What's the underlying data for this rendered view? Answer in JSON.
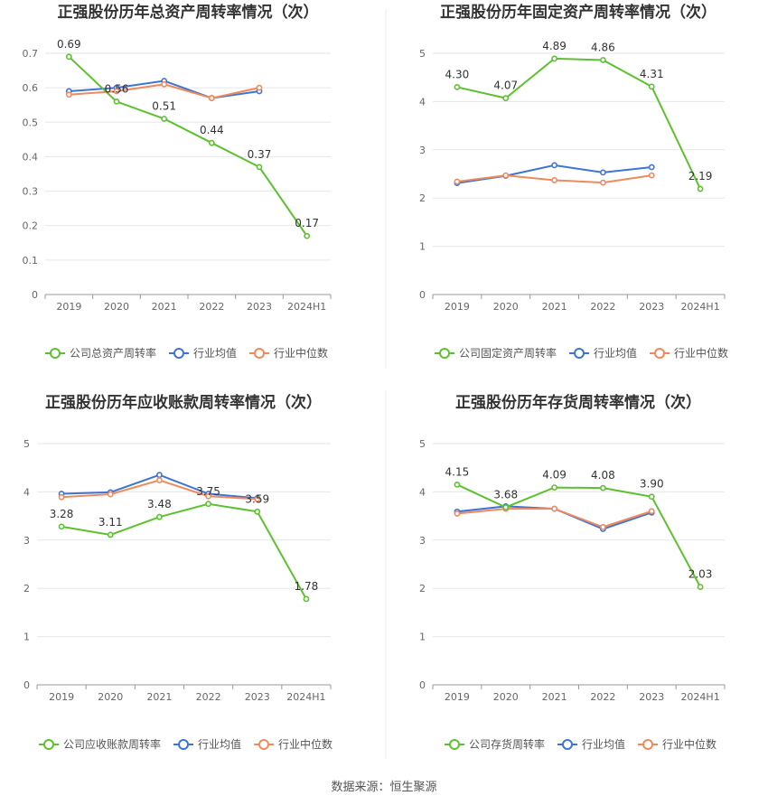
{
  "source": "数据来源：恒生聚源",
  "legend_common": {
    "avg": "行业均值",
    "median": "行业中位数"
  },
  "colors": {
    "company": "#5dc12f",
    "avg": "#3d74d6",
    "median": "#f08a5d",
    "grid": "#e6e6ee",
    "axis": "#999999"
  },
  "chart_data": [
    {
      "type": "line",
      "title": "正强股份历年总资产周转率情况（次）",
      "categories": [
        "2019",
        "2020",
        "2021",
        "2022",
        "2023",
        "2024H1"
      ],
      "ylim": [
        0,
        0.7
      ],
      "yticks": [
        "0",
        "0.1",
        "0.2",
        "0.3",
        "0.4",
        "0.5",
        "0.6",
        "0.7"
      ],
      "series": [
        {
          "name": "公司总资产周转率",
          "values": [
            0.69,
            0.56,
            0.51,
            0.44,
            0.37,
            0.17
          ],
          "labels": [
            "0.69",
            "0.56",
            "0.51",
            "0.44",
            "0.37",
            "0.17"
          ]
        },
        {
          "name": "行业均值",
          "values": [
            0.59,
            0.6,
            0.62,
            0.57,
            0.59,
            null
          ]
        },
        {
          "name": "行业中位数",
          "values": [
            0.58,
            0.59,
            0.61,
            0.57,
            0.6,
            null
          ]
        }
      ]
    },
    {
      "type": "line",
      "title": "正强股份历年固定资产周转率情况（次）",
      "categories": [
        "2019",
        "2020",
        "2021",
        "2022",
        "2023",
        "2024H1"
      ],
      "ylim": [
        0,
        5
      ],
      "yticks": [
        "0",
        "1",
        "2",
        "3",
        "4",
        "5"
      ],
      "series": [
        {
          "name": "公司固定资产周转率",
          "values": [
            4.3,
            4.07,
            4.89,
            4.86,
            4.31,
            2.19
          ],
          "labels": [
            "4.30",
            "4.07",
            "4.89",
            "4.86",
            "4.31",
            "2.19"
          ]
        },
        {
          "name": "行业均值",
          "values": [
            2.31,
            2.46,
            2.68,
            2.53,
            2.64,
            null
          ]
        },
        {
          "name": "行业中位数",
          "values": [
            2.34,
            2.47,
            2.37,
            2.32,
            2.47,
            null
          ]
        }
      ]
    },
    {
      "type": "line",
      "title": "正强股份历年应收账款周转率情况（次）",
      "categories": [
        "2019",
        "2020",
        "2021",
        "2022",
        "2023",
        "2024H1"
      ],
      "ylim": [
        0,
        5
      ],
      "yticks": [
        "0",
        "1",
        "2",
        "3",
        "4",
        "5"
      ],
      "series": [
        {
          "name": "公司应收账款周转率",
          "values": [
            3.28,
            3.11,
            3.48,
            3.75,
            3.59,
            1.78
          ],
          "labels": [
            "3.28",
            "3.11",
            "3.48",
            "3.75",
            "3.59",
            "1.78"
          ]
        },
        {
          "name": "行业均值",
          "values": [
            3.96,
            3.99,
            4.35,
            3.96,
            3.87,
            null
          ]
        },
        {
          "name": "行业中位数",
          "values": [
            3.89,
            3.95,
            4.24,
            3.91,
            3.85,
            null
          ]
        }
      ]
    },
    {
      "type": "line",
      "title": "正强股份历年存货周转率情况（次）",
      "categories": [
        "2019",
        "2020",
        "2021",
        "2022",
        "2023",
        "2024H1"
      ],
      "ylim": [
        0,
        5
      ],
      "yticks": [
        "0",
        "1",
        "2",
        "3",
        "4",
        "5"
      ],
      "series": [
        {
          "name": "公司存货周转率",
          "values": [
            4.15,
            3.68,
            4.09,
            4.08,
            3.9,
            2.03
          ],
          "labels": [
            "4.15",
            "3.68",
            "4.09",
            "4.08",
            "3.90",
            "2.03"
          ]
        },
        {
          "name": "行业均值",
          "values": [
            3.59,
            3.7,
            3.65,
            3.23,
            3.57,
            null
          ]
        },
        {
          "name": "行业中位数",
          "values": [
            3.55,
            3.65,
            3.65,
            3.27,
            3.6,
            null
          ]
        }
      ]
    }
  ]
}
